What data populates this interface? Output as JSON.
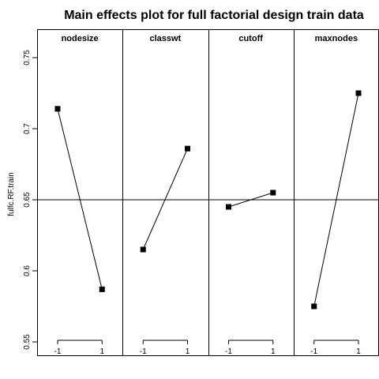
{
  "chart_data": {
    "type": "line",
    "title": "Main effects plot for full factorial design train data",
    "ylabel": "fulfc.RF.train",
    "ylim": [
      0.54,
      0.77
    ],
    "yticks": [
      0.55,
      0.6,
      0.65,
      0.7,
      0.75
    ],
    "ytick_labels": [
      "0.55",
      "0.6",
      "0.65",
      "0.7",
      "0.75"
    ],
    "grand_mean": 0.65,
    "levels": [
      "-1",
      "1"
    ],
    "panels": [
      {
        "name": "nodesize",
        "values": [
          0.714,
          0.587
        ]
      },
      {
        "name": "classwt",
        "values": [
          0.615,
          0.686
        ]
      },
      {
        "name": "cutoff",
        "values": [
          0.645,
          0.655
        ]
      },
      {
        "name": "maxnodes",
        "values": [
          0.575,
          0.725
        ]
      }
    ],
    "colors": {
      "line": "#000000",
      "marker": "#000000",
      "frame": "#000000"
    }
  }
}
